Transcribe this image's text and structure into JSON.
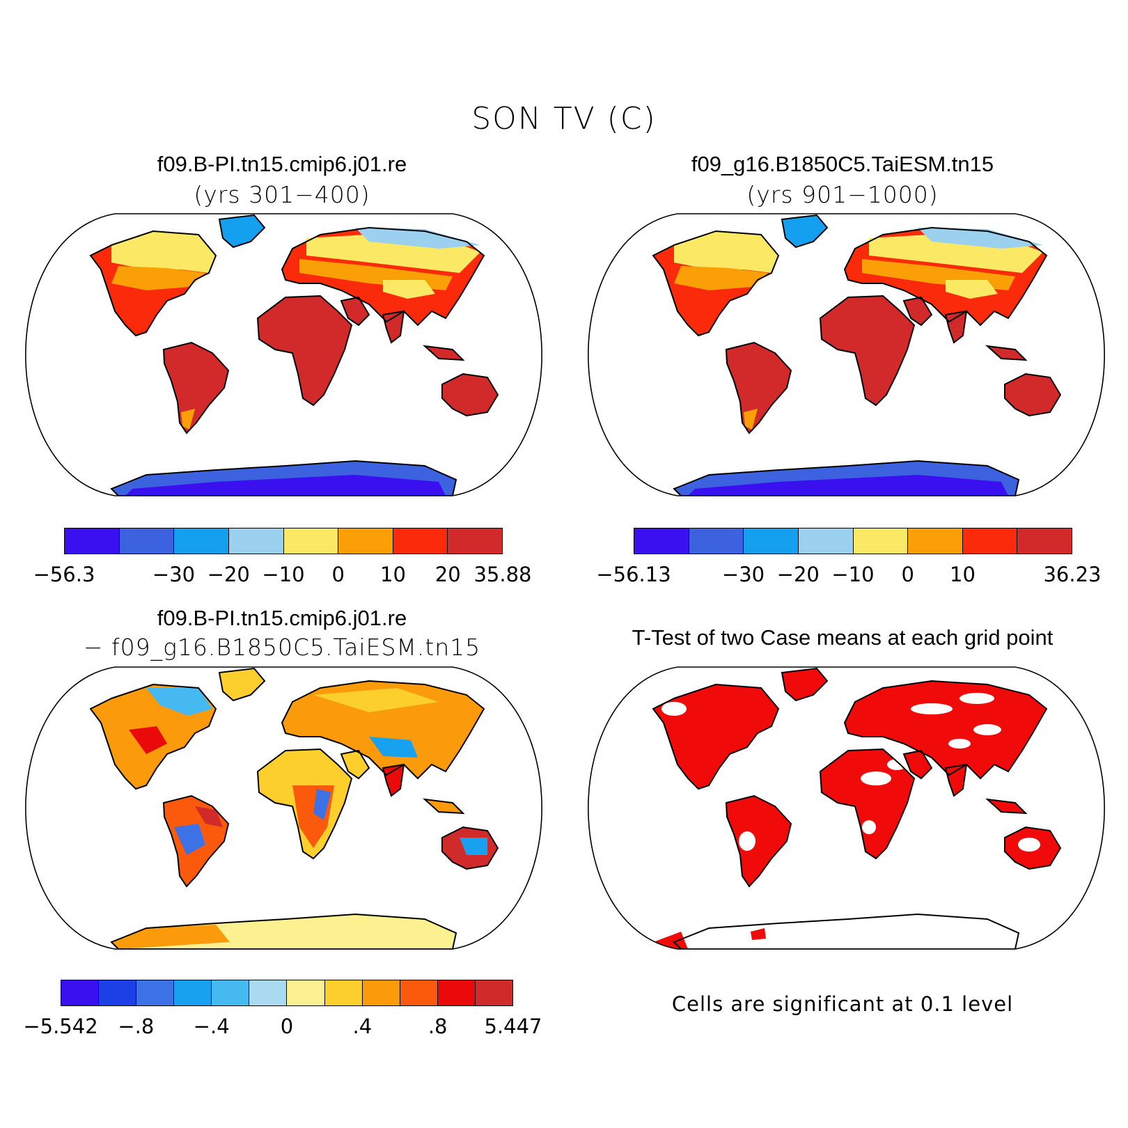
{
  "title": "SON TV (C)",
  "panels": [
    {
      "title": "f09.B-PI.tn15.cmip6.j01.re",
      "subtitle": "(yrs 301−400)"
    },
    {
      "title": "f09_g16.B1850C5.TaiESM.tn15",
      "subtitle": "(yrs 901−1000)"
    },
    {
      "title": "f09.B-PI.tn15.cmip6.j01.re",
      "subtitle": "− f09_g16.B1850C5.TaiESM.tn15"
    },
    {
      "title": "T-Test of two Case means at each grid point",
      "note": "Cells are significant at 0.1 level"
    }
  ],
  "colorbars": [
    {
      "colors": [
        "#3a10f0",
        "#3d62e0",
        "#14a0ee",
        "#9bd0ef",
        "#fbe865",
        "#fb9f06",
        "#fb2a0b",
        "#d22a2a"
      ],
      "ticks": [
        "−56.3",
        "−30",
        "−20",
        "−10",
        "0",
        "10",
        "20",
        "35.88"
      ],
      "tick_bounds": [
        0,
        2,
        3,
        4,
        5,
        6,
        7,
        8
      ]
    },
    {
      "colors": [
        "#3a10f0",
        "#3d62e0",
        "#14a0ee",
        "#9bd0ef",
        "#fbe865",
        "#fb9f06",
        "#fb2a0b",
        "#d22a2a"
      ],
      "ticks": [
        "−56.13",
        "−30",
        "−20",
        "−10",
        "0",
        "10",
        "36.23"
      ],
      "tick_bounds": [
        0,
        2,
        3,
        4,
        5,
        6,
        8
      ]
    },
    {
      "colors": [
        "#3a10f0",
        "#1c3fe6",
        "#3c72e6",
        "#18a1ef",
        "#46b9f1",
        "#a9daf0",
        "#fcf191",
        "#fccf2c",
        "#fb9a0a",
        "#fb5a0c",
        "#ea0a0a",
        "#d12a2a"
      ],
      "ticks": [
        "−5.542",
        "−.8",
        "−.4",
        "0",
        ".4",
        ".8",
        "5.447"
      ],
      "tick_bounds": [
        0,
        2,
        4,
        6,
        8,
        10,
        12
      ]
    }
  ]
}
